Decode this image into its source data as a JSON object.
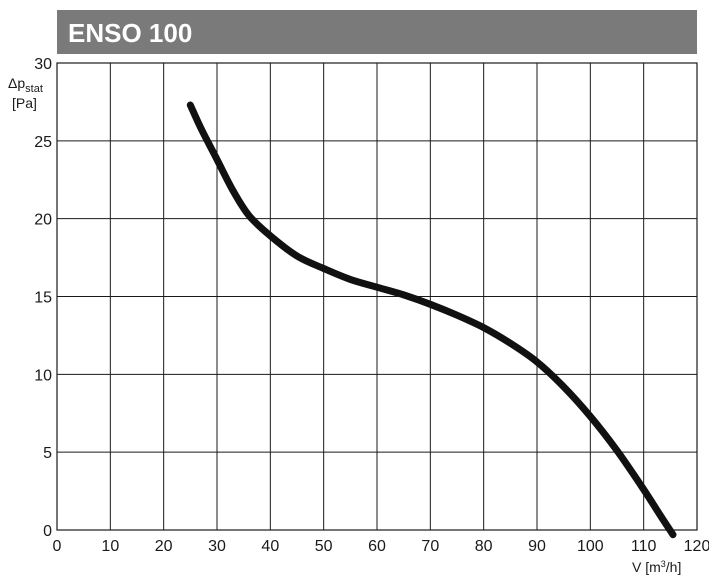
{
  "chart_data": {
    "type": "line",
    "title": "ENSO 100",
    "ylabel_main": "Δp",
    "ylabel_sub": "stat",
    "ylabel_unit": "[Pa]",
    "xlabel_main": "V [m",
    "xlabel_sup": "3",
    "xlabel_tail": "/h]",
    "xlim": [
      0,
      120
    ],
    "ylim": [
      0,
      30
    ],
    "x_ticks": [
      0,
      10,
      20,
      30,
      40,
      50,
      60,
      70,
      80,
      90,
      100,
      110,
      120
    ],
    "y_ticks": [
      0,
      5,
      10,
      15,
      20,
      25,
      30
    ],
    "x_tick_labels": [
      "0",
      "10",
      "20",
      "30",
      "40",
      "50",
      "60",
      "70",
      "80",
      "90",
      "100",
      "110",
      "120"
    ],
    "y_tick_labels": [
      "0",
      "5",
      "10",
      "15",
      "20",
      "25",
      "30"
    ],
    "grid": true,
    "series": [
      {
        "color": "#111111",
        "x": [
          25,
          27,
          30,
          33,
          36,
          40,
          45,
          50,
          55,
          60,
          65,
          70,
          75,
          80,
          85,
          90,
          95,
          100,
          105,
          110,
          113,
          115.5
        ],
        "y": [
          27.3,
          25.8,
          23.8,
          21.8,
          20.2,
          18.9,
          17.6,
          16.8,
          16.1,
          15.6,
          15.1,
          14.5,
          13.8,
          13.0,
          12.0,
          10.8,
          9.2,
          7.3,
          5.1,
          2.6,
          1.0,
          -0.3
        ]
      }
    ],
    "colors": {
      "title_bar": "#7a7a7a",
      "title_text": "#ffffff",
      "grid": "#1a1a1a",
      "curve": "#111111"
    }
  }
}
